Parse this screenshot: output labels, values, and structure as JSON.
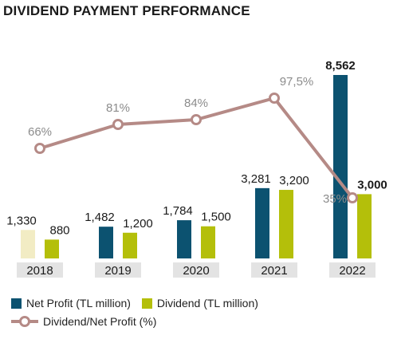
{
  "title": "DIVIDEND PAYMENT PERFORMANCE",
  "colors": {
    "net_profit": "#0c5270",
    "net_profit_light": "#f2ecc4",
    "dividend": "#b4bf0a",
    "ratio_line": "#b58a86",
    "label_grey": "#8c8c8c",
    "axis_box": "#e3e3e3"
  },
  "chart_data": {
    "type": "bar",
    "categories": [
      "2018",
      "2019",
      "2020",
      "2021",
      "2022"
    ],
    "series": [
      {
        "name": "Net Profit (TL million)",
        "values": [
          1330,
          1482,
          1784,
          3281,
          8562
        ],
        "labels": [
          "1,330",
          "1,482",
          "1,784",
          "3,281",
          "8,562"
        ]
      },
      {
        "name": "Dividend (TL million)",
        "values": [
          880,
          1200,
          1500,
          3200,
          3000
        ],
        "labels": [
          "880",
          "1,200",
          "1,500",
          "3,200",
          "3,000"
        ]
      }
    ],
    "line_series": {
      "name": "Dividend/Net Profit (%)",
      "values": [
        66,
        81,
        84,
        97.5,
        35
      ],
      "labels": [
        "66%",
        "81%",
        "84%",
        "97,5%",
        "35%"
      ]
    }
  },
  "legend": {
    "net_profit": "Net Profit (TL million)",
    "dividend": "Dividend (TL million)",
    "ratio": "Dividend/Net Profit (%)"
  }
}
